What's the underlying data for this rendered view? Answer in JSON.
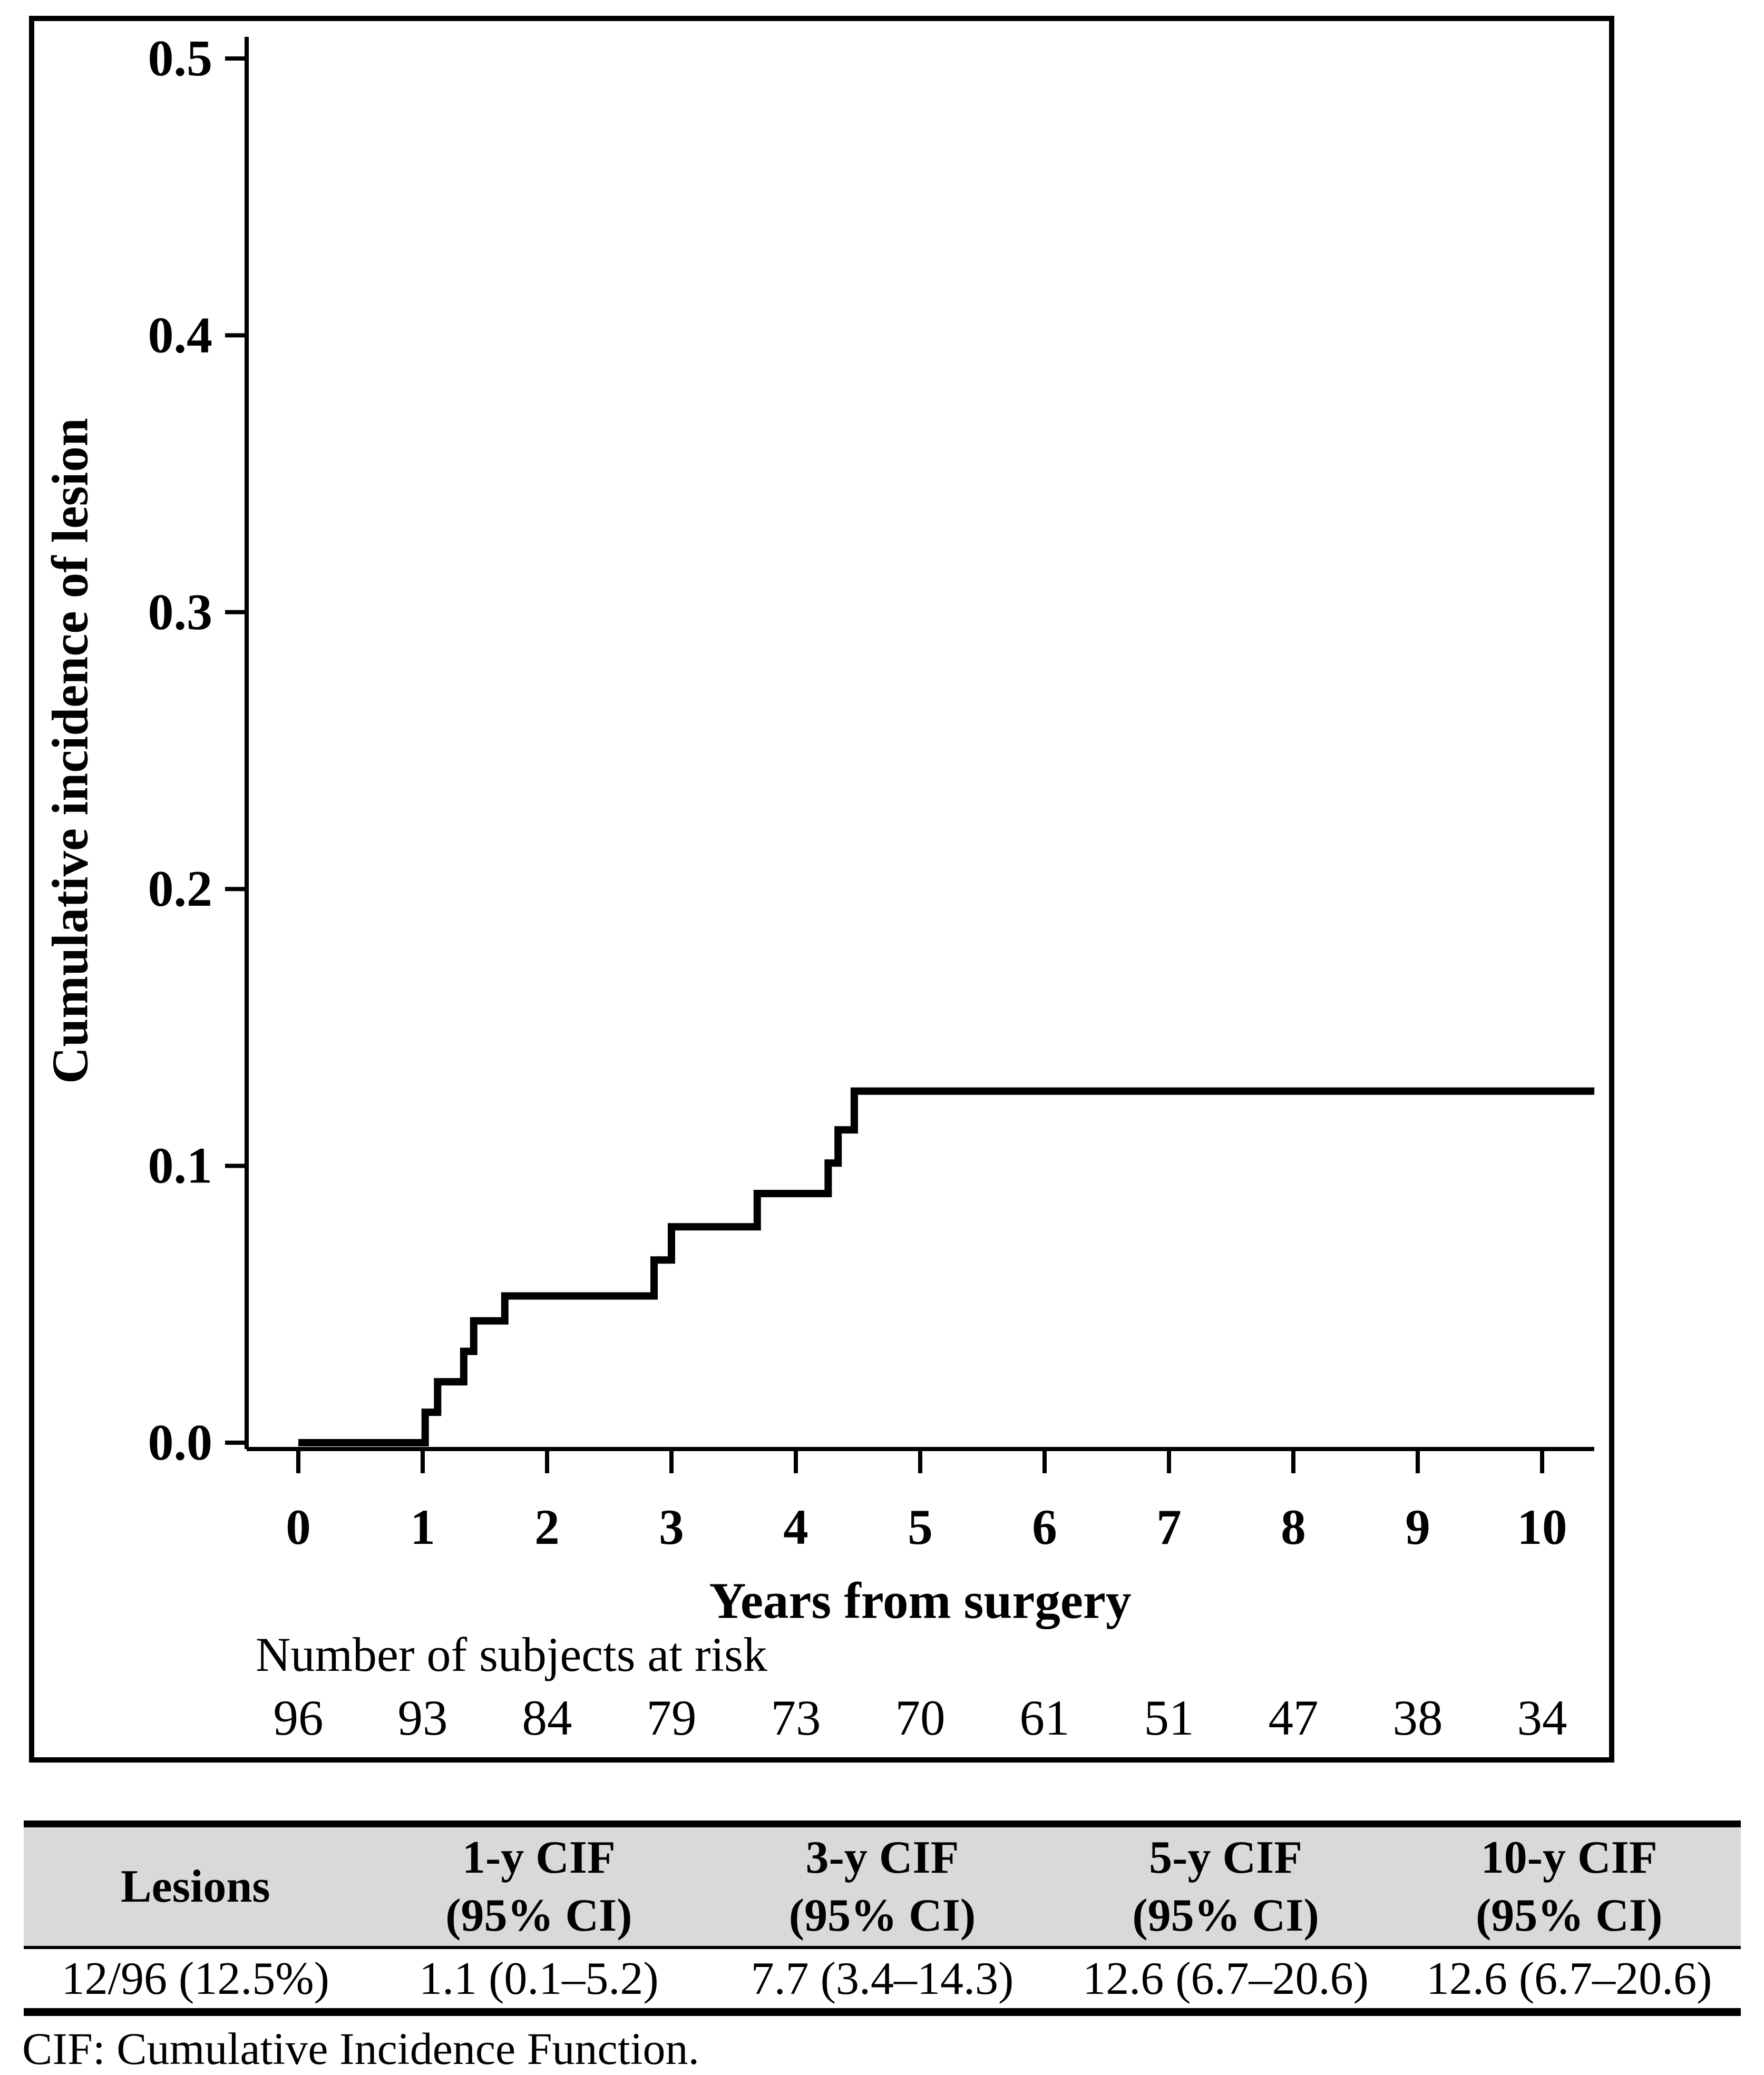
{
  "chart": {
    "y_axis_title": "Cumulative incidence of lesion",
    "x_axis_title": "Years from surgery",
    "at_risk_label": "Number of subjects at risk"
  },
  "chart_data": {
    "type": "line",
    "line_style": "step",
    "title": "",
    "xlabel": "Years from surgery",
    "ylabel": "Cumulative incidence of lesion",
    "xlim": [
      -0.4,
      10.6
    ],
    "ylim": [
      0,
      0.5
    ],
    "x_ticks": [
      "0",
      "1",
      "2",
      "3",
      "4",
      "5",
      "6",
      "7",
      "8",
      "9",
      "10"
    ],
    "y_ticks": [
      "0.0",
      "0.1",
      "0.2",
      "0.3",
      "0.4",
      "0.5"
    ],
    "grid": false,
    "legend": "none",
    "line_color": "#000000",
    "series": [
      {
        "name": "Cumulative incidence of lesion",
        "color": "#000000",
        "points": [
          [
            0.0,
            0.0
          ],
          [
            1.02,
            0.0
          ],
          [
            1.02,
            0.011
          ],
          [
            1.12,
            0.011
          ],
          [
            1.12,
            0.022
          ],
          [
            1.33,
            0.022
          ],
          [
            1.33,
            0.033
          ],
          [
            1.41,
            0.033
          ],
          [
            1.41,
            0.044
          ],
          [
            1.66,
            0.044
          ],
          [
            1.66,
            0.053
          ],
          [
            2.86,
            0.053
          ],
          [
            2.86,
            0.066
          ],
          [
            3.0,
            0.066
          ],
          [
            3.0,
            0.078
          ],
          [
            3.69,
            0.078
          ],
          [
            3.69,
            0.09
          ],
          [
            4.26,
            0.09
          ],
          [
            4.26,
            0.101
          ],
          [
            4.34,
            0.101
          ],
          [
            4.34,
            0.113
          ],
          [
            4.47,
            0.113
          ],
          [
            4.47,
            0.127
          ],
          [
            10.42,
            0.127
          ]
        ]
      }
    ],
    "number_at_risk": {
      "label": "Number of subjects at risk",
      "times": [
        "0",
        "1",
        "2",
        "3",
        "4",
        "5",
        "6",
        "7",
        "8",
        "9",
        "10"
      ],
      "values": [
        "96",
        "93",
        "84",
        "79",
        "73",
        "70",
        "61",
        "51",
        "47",
        "38",
        "34"
      ]
    }
  },
  "table": {
    "header": [
      {
        "line1": "Lesions",
        "line2": ""
      },
      {
        "line1": "1-y CIF",
        "line2": "(95% CI)"
      },
      {
        "line1": "3-y CIF",
        "line2": "(95% CI)"
      },
      {
        "line1": "5-y CIF",
        "line2": "(95% CI)"
      },
      {
        "line1": "10-y CIF",
        "line2": "(95% CI)"
      }
    ],
    "row": [
      "12/96 (12.5%)",
      "1.1 (0.1–5.2)",
      "7.7 (3.4–14.3)",
      "12.6 (6.7–20.6)",
      "12.6 (6.7–20.6)"
    ]
  },
  "footnote": "CIF: Cumulative Incidence Function."
}
